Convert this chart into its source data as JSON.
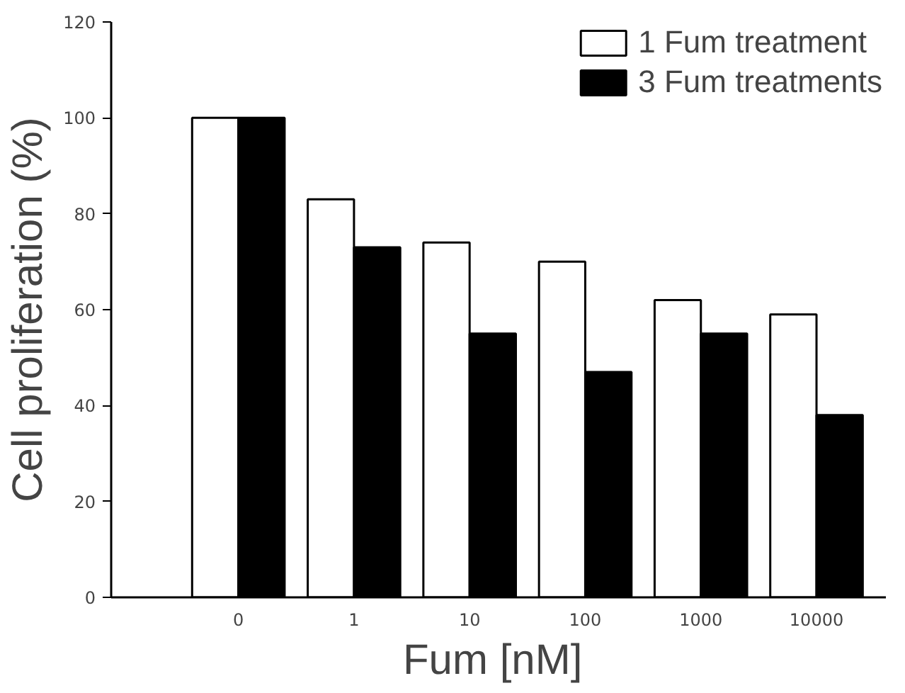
{
  "chart_data": {
    "type": "bar",
    "xlabel": "Fum  [nM]",
    "ylabel": "Cell proliferation (%)",
    "categories": [
      "0",
      "1",
      "10",
      "100",
      "1000",
      "10000"
    ],
    "series": [
      {
        "name": "1 Fum treatment",
        "color": "#ffffff",
        "values": [
          100,
          83,
          74,
          70,
          62,
          59
        ]
      },
      {
        "name": "3 Fum treatments",
        "color": "#000000",
        "values": [
          100,
          73,
          55,
          47,
          55,
          38
        ]
      }
    ],
    "ylim": [
      0,
      120
    ],
    "yticks": [
      0,
      20,
      40,
      60,
      80,
      100,
      120
    ],
    "grid": false,
    "legend": "top right"
  }
}
